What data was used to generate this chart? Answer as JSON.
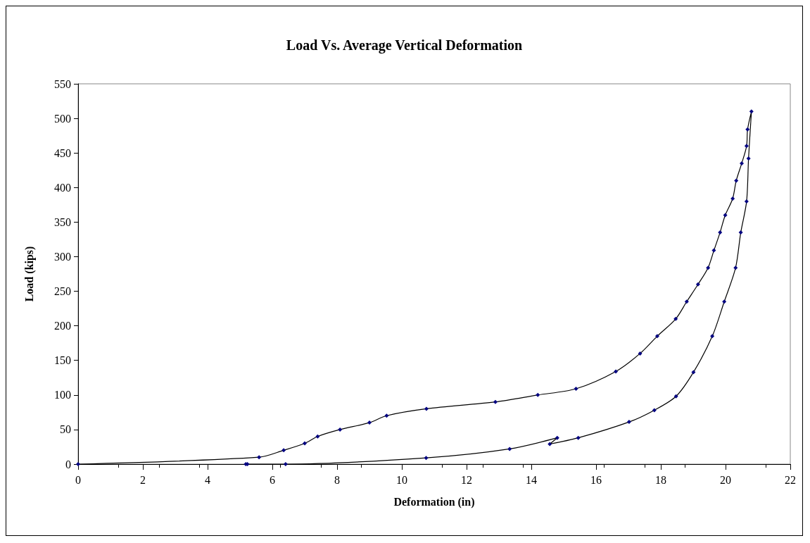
{
  "chart_data": {
    "type": "line",
    "title": "Load Vs. Average Vertical Deformation",
    "xlabel": "Deformation (in)",
    "ylabel": "Load (kips)",
    "series": [
      {
        "color": "#000080",
        "x": [
          0,
          5.59,
          6.35,
          7.0,
          7.4,
          8.09,
          9.0,
          9.53,
          10.76,
          12.89,
          14.2,
          15.38,
          16.61,
          17.36,
          17.89,
          18.46,
          18.8,
          19.15,
          19.46,
          19.64,
          19.83,
          19.99,
          20.22,
          20.33,
          20.5,
          20.65,
          20.68,
          20.8,
          20.71,
          20.65,
          20.47,
          20.31,
          19.96,
          19.59,
          19.01,
          18.47,
          17.8,
          17.02,
          15.45,
          14.57,
          14.8,
          13.33,
          10.75,
          6.41,
          5.18,
          5.23
        ],
        "values": [
          0,
          10,
          20,
          30,
          40,
          50,
          60,
          70,
          80,
          90,
          100,
          109,
          134,
          160,
          185,
          210,
          235,
          260,
          284,
          309,
          335,
          360,
          384,
          410,
          435,
          460,
          484,
          510,
          442,
          380,
          335,
          284,
          235,
          185,
          133,
          98,
          78,
          61,
          38,
          29,
          38,
          22,
          9,
          0,
          0,
          0
        ]
      }
    ],
    "xlim": [
      0,
      22
    ],
    "xticks": [
      0,
      2,
      4,
      6,
      8,
      10,
      12,
      14,
      16,
      18,
      20,
      22
    ],
    "ylim": [
      0,
      550
    ],
    "yticks": [
      0,
      50,
      100,
      150,
      200,
      250,
      300,
      350,
      400,
      450,
      500,
      550
    ],
    "grid": false,
    "marker": "diamond",
    "line_style": "solid"
  }
}
